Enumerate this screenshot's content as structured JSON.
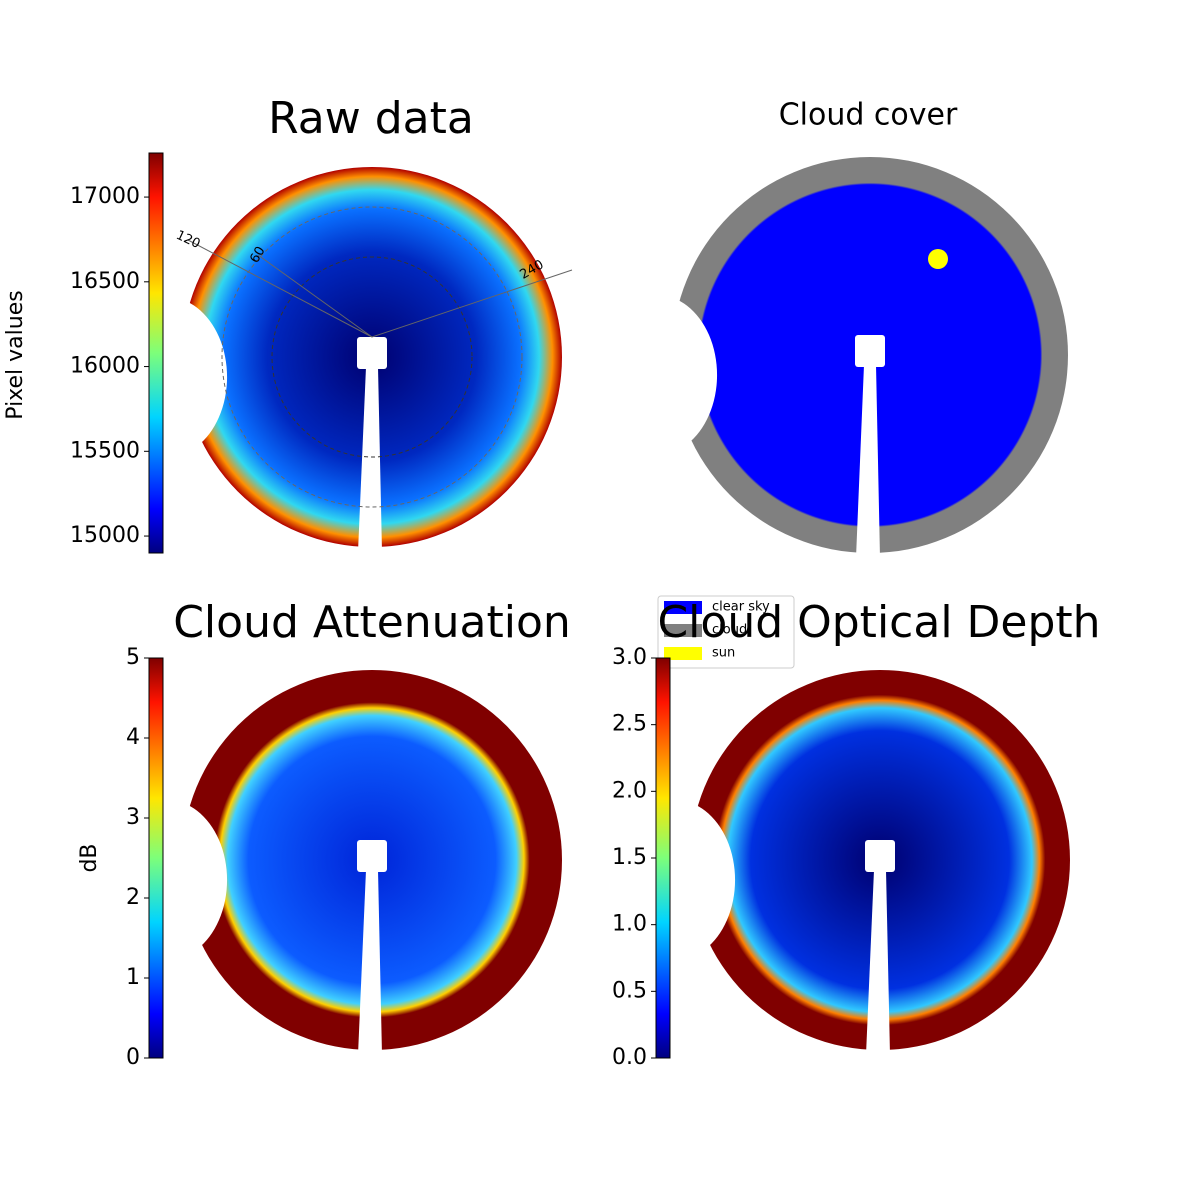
{
  "chart_data": [
    {
      "type": "image",
      "title": "Raw data",
      "colorbar_label": "Pixel values",
      "clim": [
        14900,
        17260
      ],
      "cticks": [
        15000,
        15500,
        16000,
        16500,
        17000
      ],
      "azimuth_labels": [
        120,
        60,
        240
      ]
    },
    {
      "type": "mask",
      "title": "Cloud cover",
      "legend": [
        {
          "name": "clear sky",
          "color": "#0000ff"
        },
        {
          "name": "cloud",
          "color": "#808080"
        },
        {
          "name": "sun",
          "color": "#ffff00"
        }
      ]
    },
    {
      "type": "image",
      "title": "Cloud Attenuation",
      "colorbar_label": "dB",
      "clim": [
        0,
        5
      ],
      "cticks": [
        0,
        1,
        2,
        3,
        4,
        5
      ]
    },
    {
      "type": "image",
      "title": "Cloud Optical Depth",
      "clim": [
        0,
        3
      ],
      "cticks": [
        {
          "value": 0,
          "label": "0.0"
        },
        {
          "value": 0.5,
          "label": "0.5"
        },
        {
          "value": 1,
          "label": "1.0"
        },
        {
          "value": 1.5,
          "label": "1.5"
        },
        {
          "value": 2,
          "label": "2.0"
        },
        {
          "value": 2.5,
          "label": "2.5"
        },
        {
          "value": 3,
          "label": "3.0"
        }
      ]
    }
  ]
}
